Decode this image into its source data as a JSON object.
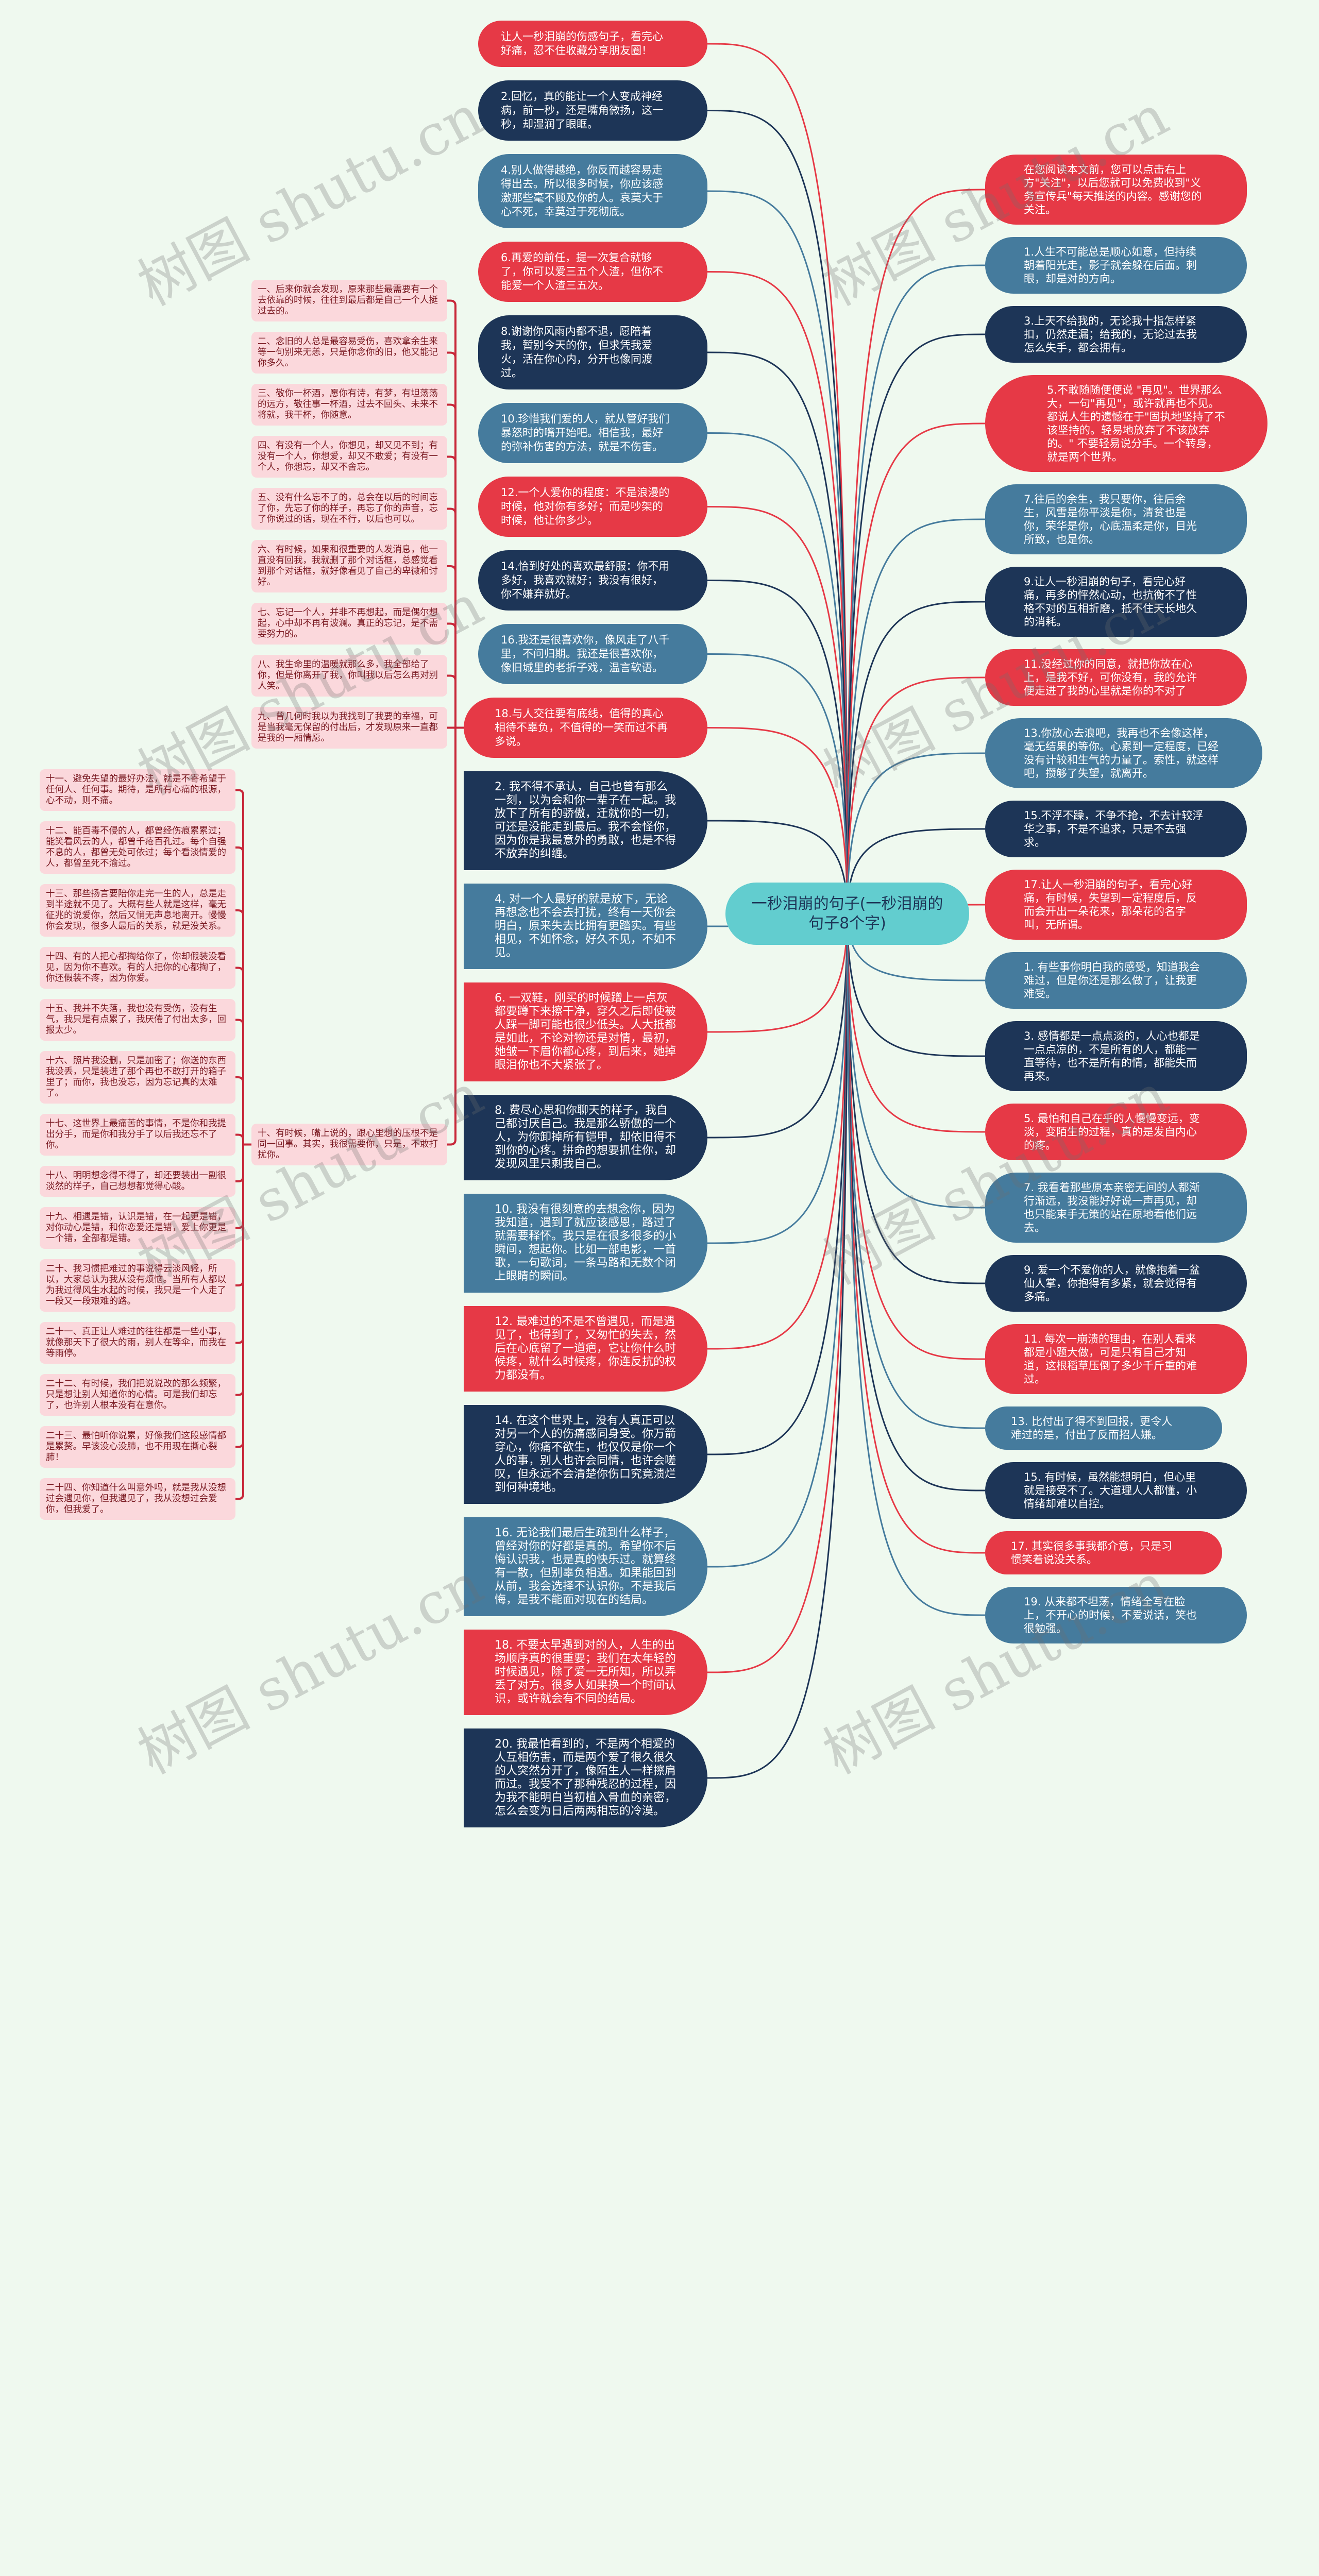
{
  "center": {
    "title": "一秒泪崩的句子(一秒泪崩的句子8个字)"
  },
  "watermark": "树图 shutu.cn",
  "colors": {
    "red": "#e63946",
    "navy": "#1d3557",
    "blue": "#457b9d",
    "center": "#62cdcf",
    "pink": "#fbd8dc",
    "pink_text": "#7a1a22",
    "background": "#eff9ef"
  },
  "left_top": [
    "让人一秒泪崩的伤感句子，看完心好痛，忍不住收藏分享朋友圈！",
    "2.回忆，真的能让一个人变成神经病，前一秒，还是嘴角微扬，这一秒，却湿润了眼眶。",
    "4.别人做得越绝，你反而越容易走得出去。所以很多时候，你应该感激那些毫不顾及你的人。哀莫大于心不死，幸莫过于死彻底。",
    "6.再爱的前任，提一次复合就够了，你可以爱三五个人渣，但你不能爱一个人渣三五次。",
    "8.谢谢你风雨内都不退，愿陪着我，暂别今天的你，但求凭我爱火，活在你心内，分开也像同渡过。",
    "10.珍惜我们爱的人，就从管好我们暴怒时的嘴开始吧。相信我，最好的弥补伤害的方法，就是不伤害。",
    "12.一个人爱你的程度：不是浪漫的时候，他对你有多好；而是吵架的时候，他让你多少。",
    "14.恰到好处的喜欢最舒服：你不用多好，我喜欢就好；我没有很好，你不嫌弃就好。",
    "16.我还是很喜欢你，像风走了八千里，不问归期。我还是很喜欢你，像旧城里的老折子戏，温言软语。",
    "18.与人交往要有底线，值得的真心相待不辜负，不值得的一笑而过不再多说。"
  ],
  "group18": [
    "一、后来你就会发现，原来那些最需要有一个去依靠的时候，往往到最后都是自己一个人挺过去的。",
    "二、念旧的人总是最容易受伤，喜欢拿余生来等一句别来无恙，只是你念你的旧，他又能记你多久。",
    "三、敬你一杯酒，愿你有诗，有梦，有坦荡荡的远方，敬往事一杯酒，过去不回头、未来不将就，我干杯，你随意。",
    "四、有没有一个人，你想见，却又见不到；有没有一个人，你想爱，却又不敢爱；有没有一个人，你想忘，却又不舍忘。",
    "五、没有什么忘不了的，总会在以后的时间忘了你，先忘了你的样子，再忘了你的声音，忘了你说过的话，现在不行，以后也可以。",
    "六、有时候，如果和很重要的人发消息，他一直没有回我，我就删了那个对话框，总感觉看到那个对话框，就好像看见了自己的卑微和讨好。",
    "七、忘记一个人，并非不再想起，而是偶尔想起，心中却不再有波澜。真正的忘记，是不需要努力的。",
    "八、我生命里的温暖就那么多，我全部给了你，但是你离开了我，你叫我以后怎么再对别人笑。",
    "九、曾几何时我以为我找到了我要的幸福，可是当我毫无保留的付出后，才发现原来一直都是我的一厢情愿。",
    "十、有时候，嘴上说的，跟心里想的压根不是同一回事。其实，我很需要你，只是，不敢打扰你。"
  ],
  "group10": [
    "十一、避免失望的最好办法，就是不寄希望于任何人、任何事。期待，是所有心痛的根源，心不动，则不痛。",
    "十二、能百毒不侵的人，都曾经伤痕累累过；能笑看风云的人，都曾千疮百孔过。每个自强不息的人，都曾无处可依过；每个看淡情爱的人，都曾至死不渝过。",
    "十三、那些扬言要陪你走完一生的人，总是走到半途就不见了。大概有些人就是这样，毫无征兆的说爱你，然后又悄无声息地离开。慢慢你会发现，很多人最后的关系，就是没关系。",
    "十四、有的人把心都掏给你了，你却假装没看见，因为你不喜欢。有的人把你的心都掏了，你还假装不疼，因为你爱。",
    "十五、我并不失落，我也没有受伤，没有生气，我只是有点累了，我厌倦了付出太多，回报太少。",
    "十六、照片我没删，只是加密了；你送的东西我没丢，只是装进了那个再也不敢打开的箱子里了；而你，我也没忘，因为忘记真的太难了。",
    "十七、这世界上最痛苦的事情，不是你和我提出分手，而是你和我分手了以后我还忘不了你。",
    "十八、明明想念得不得了，却还要装出一副很淡然的样子，自己想想都觉得心酸。",
    "十九、相遇是错，认识是错，在一起更是错，对你动心是错，和你恋爱还是错，爱上你更是一个错，全部都是错。",
    "二十、我习惯把难过的事说得云淡风轻，所以，大家总认为我从没有烦恼。当所有人都以为我过得风生水起的时候，我只是一个人走了一段又一段艰难的路。",
    "二十一、真正让人难过的往往都是一些小事，就像那天下了很大的雨，别人在等伞，而我在等雨停。",
    "二十二、有时候，我们把说说改的那么频繁，只是想让别人知道你的心情。可是我们却忘了，也许别人根本没有在意你。",
    "二十三、最怕听你说累，好像我们这段感情都是累赘。早该没心没肺，也不用现在撕心裂肺！",
    "二十四、你知道什么叫意外吗，就是我从没想过会遇见你，但我遇见了，我从没想过会爱你，但我爱了。"
  ],
  "right": [
    "在您阅读本文前，您可以点击右上方\"关注\"，以后您就可以免费收到\"义务宣传兵\"每天推送的内容。感谢您的关注。",
    "1.人生不可能总是顺心如意，但持续朝着阳光走，影子就会躲在后面。刺眼，却是对的方向。",
    "3.上天不给我的，无论我十指怎样紧扣，仍然走漏；给我的，无论过去我怎么失手，都会拥有。",
    "5.不敢随随便便说 \"再见\"。世界那么大，一句\"再见\"，或许就再也不见。都说人生的遗憾在于\"固执地坚持了不该坚持的。轻易地放弃了不该放弃的。\" 不要轻易说分手。一个转身，就是两个世界。",
    "7.往后的余生，我只要你，往后余生，风雪是你平淡是你，清贫也是你，荣华是你，心底温柔是你，目光所致，也是你。",
    "9.让人一秒泪崩的句子，看完心好痛，再多的怦然心动，也抗衡不了性格不对的互相折磨，抵不住天长地久的消耗。",
    "11.没经过你的同意，就把你放在心上，是我不好，可你没有，我的允许便走进了我的心里就是你的不对了",
    "13.你放心去浪吧，我再也不会像这样，毫无结果的等你。心累到一定程度，已经没有计较和生气的力量了。索性，就这样吧，攒够了失望，就离开。",
    "15.不浮不躁，不争不抢，不去计较浮华之事，不是不追求，只是不去强求。",
    "17.让人一秒泪崩的句子，看完心好痛，有时候，失望到一定程度后，反而会开出一朵花来，那朵花的名字叫，无所谓。",
    "1. 有些事你明白我的感受，知道我会难过，但是你还是那么做了，让我更难受。",
    "3. 感情都是一点点淡的，人心也都是一点点凉的，不是所有的人，都能一直等待，也不是所有的情，都能失而再来。",
    "5. 最怕和自己在乎的人慢慢变远，变淡，变陌生的过程，真的是发自内心的疼。",
    "7. 我看着那些原本亲密无间的人都渐行渐远，我没能好好说一声再见，却也只能束手无策的站在原地看他们远去。",
    "9. 爱一个不爱你的人，就像抱着一盆仙人掌，你抱得有多紧，就会觉得有多痛。",
    "11. 每次一崩溃的理由，在别人看来都是小题大做，可是只有自己才知道，这根稻草压倒了多少千斤重的难过。",
    "13. 比付出了得不到回报，更令人难过的是，付出了反而招人嫌。",
    "15. 有时候，虽然能想明白，但心里就是接受不了。大道理人人都懂，小情绪却难以自控。",
    "17. 其实很多事我都介意，只是习惯笑着说没关系。",
    "19. 从来都不坦荡，情绪全写在脸上，不开心的时候，不爱说话，笑也很勉强。"
  ],
  "left_bottom": [
    "2. 我不得不承认，自己也曾有那么一刻，以为会和你一辈子在一起。我放下了所有的骄傲，迁就你的一切，可还是没能走到最后。我不会怪你，因为你是我最意外的勇敢，也是不得不放弃的纠缠。",
    "4. 对一个人最好的就是放下，无论再想念也不会去打扰，终有一天你会明白，原来失去比拥有更踏实。有些相见，不如怀念，好久不见，不如不见。",
    "6. 一双鞋，刚买的时候蹭上一点灰都要蹲下来擦干净，穿久之后即使被人踩一脚可能也很少低头。人大抵都是如此，不论对物还是对情，最初，她皱一下眉你都心疼，到后来，她掉眼泪你也不大紧张了。",
    "8. 费尽心思和你聊天的样子，我自己都讨厌自己。我是那么骄傲的一个人，为你卸掉所有铠甲，却依旧得不到你的心疼。拼命的想要抓住你，却发现风里只剩我自己。",
    "10. 我没有很刻意的去想念你，因为我知道，遇到了就应该感恩，路过了就需要释怀。我只是在很多很多的小瞬间，想起你。比如一部电影，一首歌，一句歌词，一条马路和无数个闭上眼睛的瞬间。",
    "12. 最难过的不是不曾遇见，而是遇见了，也得到了，又匆忙的失去，然后在心底留了一道疤，它让你什么时候疼，就什么时候疼，你连反抗的权力都没有。",
    "14. 在这个世界上，没有人真正可以对另一个人的伤痛感同身受。你万箭穿心，你痛不欲生，也仅仅是你一个人的事，别人也许会同情，也许会嗟叹，但永远不会清楚你伤口究竟溃烂到何种境地。",
    "16. 无论我们最后生疏到什么样子，曾经对你的好都是真的。希望你不后悔认识我，也是真的快乐过。就算终有一散，但别辜负相遇。如果能回到从前，我会选择不认识你。不是我后悔，是我不能面对现在的结局。",
    "18. 不要太早遇到对的人，人生的出场顺序真的很重要；我们在太年轻的时候遇见，除了爱一无所知，所以弄丢了对方。很多人如果换一个时间认识，或许就会有不同的结局。",
    "20. 我最怕看到的，不是两个相爱的人互相伤害，而是两个爱了很久很久的人突然分开了，像陌生人一样擦肩而过。我受不了那种残忍的过程，因为我不能明白当初植入骨血的亲密，怎么会变为日后两两相忘的冷漠。"
  ]
}
